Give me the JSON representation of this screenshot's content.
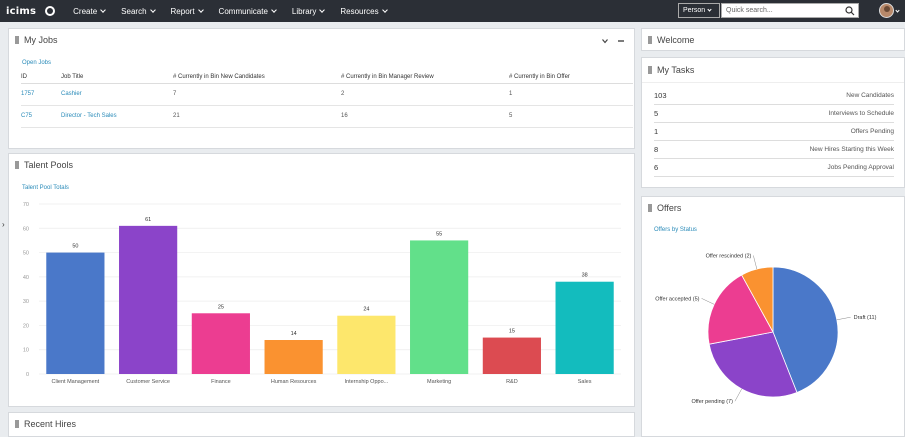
{
  "topbar": {
    "logo": "icims",
    "nav": [
      {
        "label": "Create"
      },
      {
        "label": "Search"
      },
      {
        "label": "Report"
      },
      {
        "label": "Communicate"
      },
      {
        "label": "Library"
      },
      {
        "label": "Resources"
      }
    ],
    "search_type": "Person",
    "search_placeholder": "Quick search..."
  },
  "my_jobs": {
    "title": "My Jobs",
    "open_jobs_link": "Open Jobs",
    "columns": [
      "ID",
      "Job Title",
      "# Currently in Bin New Candidates",
      "# Currently in Bin Manager Review",
      "# Currently in Bin Offer"
    ],
    "rows": [
      {
        "id": "1757",
        "title": "Cashier",
        "new": "7",
        "review": "2",
        "offer": "1"
      },
      {
        "id": "C75",
        "title": "Director - Tech Sales",
        "new": "21",
        "review": "16",
        "offer": "5"
      }
    ]
  },
  "talent_pools": {
    "title": "Talent Pools",
    "subtitle_link": "Talent Pool Totals"
  },
  "welcome": {
    "title": "Welcome"
  },
  "my_tasks": {
    "title": "My Tasks",
    "rows": [
      {
        "count": "103",
        "label": "New Candidates"
      },
      {
        "count": "5",
        "label": "Interviews to Schedule"
      },
      {
        "count": "1",
        "label": "Offers Pending"
      },
      {
        "count": "8",
        "label": "New Hires Starting this Week"
      },
      {
        "count": "6",
        "label": "Jobs Pending Approval"
      }
    ]
  },
  "offers": {
    "title": "Offers",
    "subtitle_link": "Offers by Status"
  },
  "recent_hires": {
    "title": "Recent Hires"
  },
  "chart_data": [
    {
      "type": "bar",
      "categories": [
        "Client Management",
        "Customer Service",
        "Finance",
        "Human Resources",
        "Internship Oppo...",
        "Marketing",
        "R&D",
        "Sales"
      ],
      "values": [
        50,
        61,
        25,
        14,
        24,
        55,
        15,
        38
      ],
      "colors": [
        "#4a78c9",
        "#8b44c9",
        "#ec3d91",
        "#fa9230",
        "#fde76c",
        "#62e08a",
        "#dc4b51",
        "#13bcbe"
      ],
      "ylim": [
        0,
        70
      ],
      "yticks": [
        "0",
        "10",
        "20",
        "30",
        "40",
        "50",
        "60",
        "70"
      ],
      "grid": true
    },
    {
      "type": "pie",
      "labels": [
        "Draft (11)",
        "Offer pending (7)",
        "Offer accepted (5)",
        "Offer rescinded (2)"
      ],
      "values": [
        11,
        7,
        5,
        2
      ],
      "colors": [
        "#4a78c9",
        "#8b44c9",
        "#ec3d91",
        "#fa9230"
      ]
    }
  ]
}
